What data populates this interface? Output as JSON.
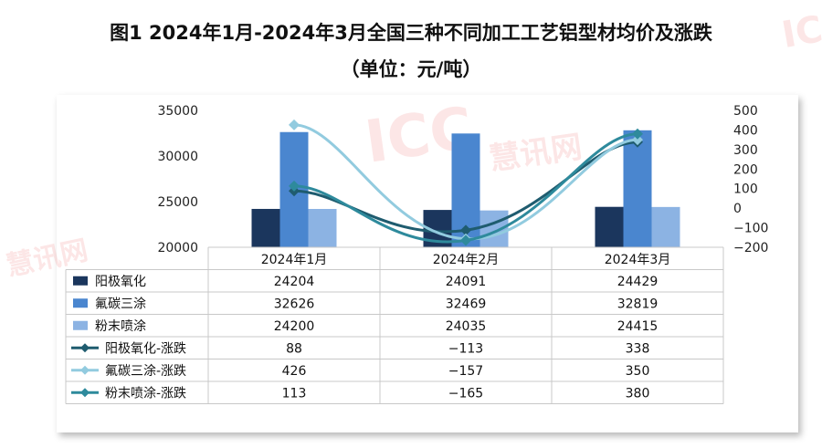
{
  "title": "图1 2024年1月-2024年3月全国三种不同加工工艺铝型材均价及涨跌",
  "subtitle": "（单位：元/吨）",
  "watermark": {
    "logo": "ICC",
    "brand": "慧讯网"
  },
  "chart_data": {
    "type": "bar",
    "title": "图1 2024年1月-2024年3月全国三种不同加工工艺铝型材均价及涨跌",
    "subtitle": "（单位：元/吨）",
    "categories": [
      "2024年1月",
      "2024年2月",
      "2024年3月"
    ],
    "y_left": {
      "min": 20000,
      "max": 35000,
      "ticks": [
        "20000",
        "25000",
        "30000",
        "35000"
      ]
    },
    "y_right": {
      "min": -200,
      "max": 500,
      "ticks": [
        "−200",
        "−100",
        "0",
        "100",
        "200",
        "300",
        "400",
        "500"
      ]
    },
    "legend_position": "data-table",
    "grid": false,
    "series": [
      {
        "name": "阳极氧化",
        "type": "bar",
        "axis": "left",
        "color": "#1b365d",
        "values": [
          24204,
          24091,
          24429
        ],
        "labels": [
          "24204",
          "24091",
          "24429"
        ]
      },
      {
        "name": "氟碳三涂",
        "type": "bar",
        "axis": "left",
        "color": "#4a86cf",
        "values": [
          32626,
          32469,
          32819
        ],
        "labels": [
          "32626",
          "32469",
          "32819"
        ]
      },
      {
        "name": "粉末喷涂",
        "type": "bar",
        "axis": "left",
        "color": "#8cb3e3",
        "values": [
          24200,
          24035,
          24415
        ],
        "labels": [
          "24200",
          "24035",
          "24415"
        ]
      },
      {
        "name": "阳极氧化-涨跌",
        "type": "line",
        "axis": "right",
        "color": "#1f5c6f",
        "values": [
          88,
          -113,
          338
        ],
        "labels": [
          "88",
          "−113",
          "338"
        ]
      },
      {
        "name": "氟碳三涂-涨跌",
        "type": "line",
        "axis": "right",
        "color": "#92cbdf",
        "values": [
          426,
          -157,
          350
        ],
        "labels": [
          "426",
          "−157",
          "350"
        ]
      },
      {
        "name": "粉末喷涂-涨跌",
        "type": "line",
        "axis": "right",
        "color": "#2e8a9c",
        "values": [
          113,
          -165,
          380
        ],
        "labels": [
          "113",
          "−165",
          "380"
        ]
      }
    ]
  }
}
